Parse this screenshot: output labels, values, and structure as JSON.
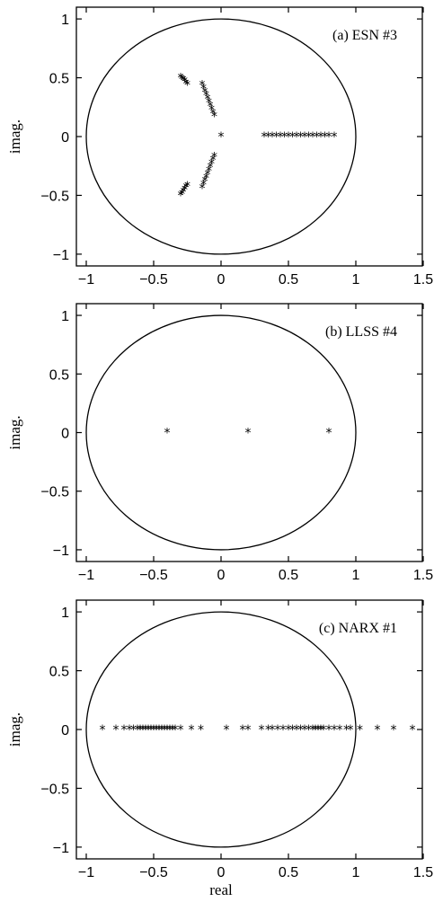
{
  "figure": {
    "xlabel": "real"
  },
  "chart_data": [
    {
      "type": "scatter",
      "title": "(a) ESN #3",
      "xlabel": "",
      "ylabel": "imag.",
      "xlim": [
        -1.0,
        1.5
      ],
      "ylim": [
        -1.1,
        1.1
      ],
      "xticks": [
        "−1",
        "−0.5",
        "0",
        "0.5",
        "1",
        "1.5"
      ],
      "yticks": [
        "1",
        "0.5",
        "0",
        "−0.5",
        "−1"
      ],
      "unit_circle": true,
      "marker": "*",
      "series": [
        {
          "points": [
            [
              0.0,
              0.0
            ],
            [
              -0.3,
              0.5
            ],
            [
              -0.29,
              0.49
            ],
            [
              -0.28,
              0.48
            ],
            [
              -0.27,
              0.47
            ],
            [
              -0.26,
              0.45
            ],
            [
              -0.25,
              0.44
            ],
            [
              -0.3,
              -0.5
            ],
            [
              -0.29,
              -0.49
            ],
            [
              -0.28,
              -0.47
            ],
            [
              -0.27,
              -0.45
            ],
            [
              -0.26,
              -0.43
            ],
            [
              -0.25,
              -0.42
            ],
            [
              -0.14,
              0.44
            ],
            [
              -0.13,
              0.41
            ],
            [
              -0.12,
              0.38
            ],
            [
              -0.11,
              0.35
            ],
            [
              -0.1,
              0.32
            ],
            [
              -0.09,
              0.29
            ],
            [
              -0.08,
              0.26
            ],
            [
              -0.07,
              0.23
            ],
            [
              -0.06,
              0.2
            ],
            [
              -0.05,
              0.17
            ],
            [
              -0.14,
              -0.44
            ],
            [
              -0.13,
              -0.41
            ],
            [
              -0.12,
              -0.38
            ],
            [
              -0.11,
              -0.35
            ],
            [
              -0.1,
              -0.32
            ],
            [
              -0.09,
              -0.29
            ],
            [
              -0.08,
              -0.26
            ],
            [
              -0.07,
              -0.23
            ],
            [
              -0.06,
              -0.2
            ],
            [
              -0.05,
              -0.17
            ],
            [
              0.32,
              0.0
            ],
            [
              0.35,
              0.0
            ],
            [
              0.38,
              0.0
            ],
            [
              0.41,
              0.0
            ],
            [
              0.44,
              0.0
            ],
            [
              0.47,
              0.0
            ],
            [
              0.5,
              0.0
            ],
            [
              0.53,
              0.0
            ],
            [
              0.56,
              0.0
            ],
            [
              0.59,
              0.0
            ],
            [
              0.62,
              0.0
            ],
            [
              0.65,
              0.0
            ],
            [
              0.68,
              0.0
            ],
            [
              0.71,
              0.0
            ],
            [
              0.74,
              0.0
            ],
            [
              0.77,
              0.0
            ],
            [
              0.8,
              0.0
            ],
            [
              0.84,
              0.0
            ]
          ]
        }
      ]
    },
    {
      "type": "scatter",
      "title": "(b) LLSS #4",
      "xlabel": "",
      "ylabel": "imag.",
      "xlim": [
        -1.0,
        1.5
      ],
      "ylim": [
        -1.1,
        1.1
      ],
      "xticks": [
        "−1",
        "−0.5",
        "0",
        "0.5",
        "1",
        "1.5"
      ],
      "yticks": [
        "1",
        "0.5",
        "0",
        "−0.5",
        "−1"
      ],
      "unit_circle": true,
      "marker": "*",
      "series": [
        {
          "points": [
            [
              -0.4,
              0.0
            ],
            [
              0.2,
              0.0
            ],
            [
              0.8,
              0.0
            ]
          ]
        }
      ]
    },
    {
      "type": "scatter",
      "title": "(c) NARX #1",
      "xlabel": "real",
      "ylabel": "imag.",
      "xlim": [
        -1.0,
        1.5
      ],
      "ylim": [
        -1.1,
        1.1
      ],
      "xticks": [
        "−1",
        "−0.5",
        "0",
        "0.5",
        "1",
        "1.5"
      ],
      "yticks": [
        "1",
        "0.5",
        "0",
        "−0.5",
        "−1"
      ],
      "unit_circle": true,
      "marker": "*",
      "series": [
        {
          "points": [
            [
              -0.88,
              0.0
            ],
            [
              -0.78,
              0.0
            ],
            [
              -0.72,
              0.0
            ],
            [
              -0.68,
              0.0
            ],
            [
              -0.65,
              0.0
            ],
            [
              -0.62,
              0.0
            ],
            [
              -0.6,
              0.0
            ],
            [
              -0.58,
              0.0
            ],
            [
              -0.56,
              0.0
            ],
            [
              -0.54,
              0.0
            ],
            [
              -0.52,
              0.0
            ],
            [
              -0.5,
              0.0
            ],
            [
              -0.48,
              0.0
            ],
            [
              -0.46,
              0.0
            ],
            [
              -0.44,
              0.0
            ],
            [
              -0.42,
              0.0
            ],
            [
              -0.4,
              0.0
            ],
            [
              -0.38,
              0.0
            ],
            [
              -0.36,
              0.0
            ],
            [
              -0.34,
              0.0
            ],
            [
              -0.3,
              0.0
            ],
            [
              -0.22,
              0.0
            ],
            [
              -0.15,
              0.0
            ],
            [
              0.04,
              0.0
            ],
            [
              0.16,
              0.0
            ],
            [
              0.2,
              0.0
            ],
            [
              0.3,
              0.0
            ],
            [
              0.35,
              0.0
            ],
            [
              0.38,
              0.0
            ],
            [
              0.42,
              0.0
            ],
            [
              0.46,
              0.0
            ],
            [
              0.5,
              0.0
            ],
            [
              0.53,
              0.0
            ],
            [
              0.56,
              0.0
            ],
            [
              0.59,
              0.0
            ],
            [
              0.62,
              0.0
            ],
            [
              0.65,
              0.0
            ],
            [
              0.68,
              0.0
            ],
            [
              0.7,
              0.0
            ],
            [
              0.72,
              0.0
            ],
            [
              0.74,
              0.0
            ],
            [
              0.76,
              0.0
            ],
            [
              0.8,
              0.0
            ],
            [
              0.84,
              0.0
            ],
            [
              0.88,
              0.0
            ],
            [
              0.93,
              0.0
            ],
            [
              0.96,
              0.0
            ],
            [
              1.03,
              0.0
            ],
            [
              1.16,
              0.0
            ],
            [
              1.28,
              0.0
            ],
            [
              1.42,
              0.0
            ]
          ]
        }
      ]
    }
  ]
}
